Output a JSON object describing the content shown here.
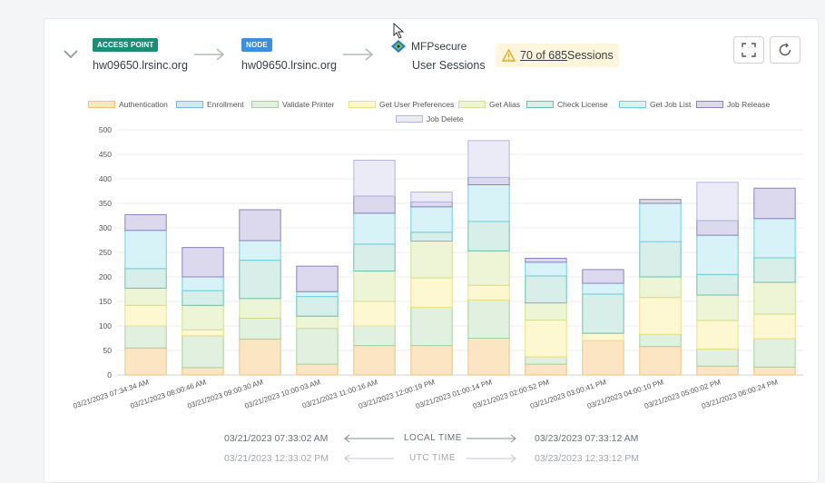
{
  "header": {
    "access_point_badge": "ACCESS POINT",
    "access_point_host": "hw09650.lrsinc.org",
    "node_badge": "NODE",
    "node_host": "hw09650.lrsinc.org",
    "brand": "MFPsecure",
    "section_title": "User Sessions",
    "sessions_link": "70 of 685",
    "sessions_suffix": "Sessions",
    "icons": [
      "chevron-down-icon",
      "arrow-right-icon",
      "warning-icon",
      "fullscreen-icon",
      "refresh-icon"
    ]
  },
  "colors": {
    "access_point_badge": "#1a8f78",
    "node_badge": "#3c8fe0",
    "warning": "#e8a72a",
    "brand_diamond": "#1f7fc9"
  },
  "chart_data": {
    "type": "bar",
    "stacked": true,
    "legend_position": "top",
    "grid": true,
    "ylim": [
      0,
      500
    ],
    "yticks": [
      0,
      50,
      100,
      150,
      200,
      250,
      300,
      350,
      400,
      450,
      500
    ],
    "categories": [
      "03/21/2023 07:34:34 AM",
      "03/21/2023 08:00:46 AM",
      "03/21/2023 09:00:30 AM",
      "03/21/2023 10:00:03 AM",
      "03/21/2023 11:00:16 AM",
      "03/21/2023 12:00:19 PM",
      "03/21/2023 01:00:14 PM",
      "03/21/2023 02:00:52 PM",
      "03/21/2023 03:00:41 PM",
      "03/21/2023 04:00:10 PM",
      "03/21/2023 05:00:02 PM",
      "03/21/2023 06:00:24 PM"
    ],
    "series": [
      {
        "name": "Authentication",
        "fill": "#fbe5c3",
        "stroke": "#f2c27a",
        "values": [
          55,
          15,
          73,
          22,
          60,
          60,
          75,
          22,
          70,
          58,
          18,
          16
        ]
      },
      {
        "name": "Enrollment",
        "fill": "#d3e8f7",
        "stroke": "#7ab8e6",
        "values": [
          0,
          0,
          0,
          0,
          0,
          0,
          0,
          0,
          0,
          0,
          0,
          0
        ]
      },
      {
        "name": "Validate Printer",
        "fill": "#e2f0df",
        "stroke": "#a6d0a0",
        "values": [
          45,
          65,
          43,
          73,
          40,
          78,
          78,
          15,
          0,
          25,
          35,
          58
        ]
      },
      {
        "name": "Get User Preferences",
        "fill": "#fdf7d2",
        "stroke": "#f1df82",
        "values": [
          42,
          12,
          0,
          0,
          50,
          60,
          30,
          75,
          15,
          75,
          58,
          50
        ]
      },
      {
        "name": "Get Alias",
        "fill": "#eef4d6",
        "stroke": "#d0e08c",
        "values": [
          35,
          50,
          40,
          25,
          62,
          75,
          70,
          35,
          0,
          42,
          52,
          65
        ]
      },
      {
        "name": "Check License",
        "fill": "#d7eee9",
        "stroke": "#6fbfb0",
        "values": [
          40,
          30,
          78,
          40,
          55,
          18,
          60,
          55,
          80,
          72,
          42,
          50
        ]
      },
      {
        "name": "Get Job List",
        "fill": "#d7f3f8",
        "stroke": "#6dd0e2",
        "values": [
          78,
          28,
          40,
          10,
          63,
          52,
          75,
          28,
          22,
          78,
          80,
          80
        ]
      },
      {
        "name": "Job Release",
        "fill": "#dcd9ee",
        "stroke": "#8a84bf",
        "values": [
          32,
          60,
          63,
          52,
          35,
          10,
          15,
          8,
          28,
          8,
          30,
          62
        ]
      },
      {
        "name": "Job Delete",
        "fill": "#ebebf8",
        "stroke": "#b5b3e0",
        "values": [
          0,
          0,
          0,
          0,
          73,
          20,
          75,
          0,
          0,
          0,
          78,
          0
        ]
      }
    ]
  },
  "time_range": {
    "local_start": "03/21/2023 07:33:02 AM",
    "local_label": "LOCAL TIME",
    "local_end": "03/23/2023 07:33:12 AM",
    "utc_start": "03/21/2023 12:33:02 PM",
    "utc_label": "UTC TIME",
    "utc_end": "03/23/2023 12:33:12 PM"
  }
}
